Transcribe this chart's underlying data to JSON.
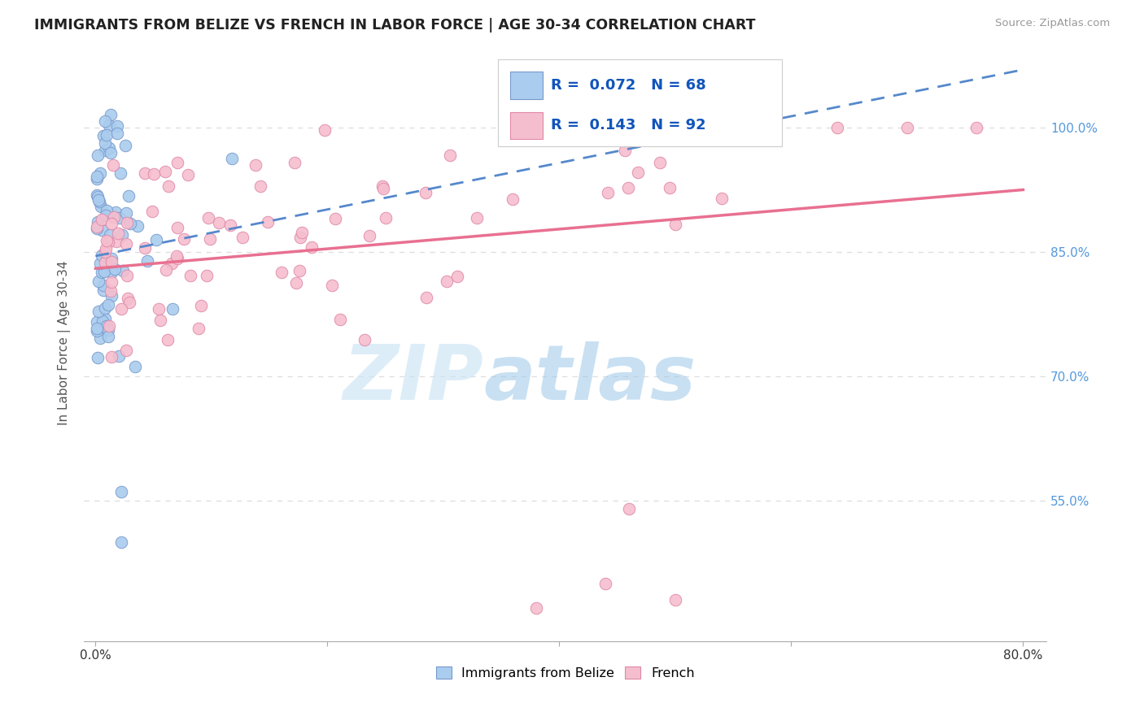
{
  "title": "IMMIGRANTS FROM BELIZE VS FRENCH IN LABOR FORCE | AGE 30-34 CORRELATION CHART",
  "source": "Source: ZipAtlas.com",
  "ylabel": "In Labor Force | Age 30-34",
  "xlim": [
    -0.01,
    0.82
  ],
  "ylim": [
    0.38,
    1.1
  ],
  "xtick_values": [
    0.0,
    0.2,
    0.4,
    0.6,
    0.8
  ],
  "xtick_labels": [
    "0.0%",
    "",
    "",
    "",
    "80.0%"
  ],
  "ytick_values": [
    0.55,
    0.7,
    0.85,
    1.0
  ],
  "ytick_labels": [
    "55.0%",
    "70.0%",
    "85.0%",
    "100.0%"
  ],
  "legend_labels": [
    "Immigrants from Belize",
    "French"
  ],
  "R_belize": 0.072,
  "N_belize": 68,
  "R_french": 0.143,
  "N_french": 92,
  "belize_color": "#aaccee",
  "french_color": "#f5bece",
  "belize_edge": "#7799cc",
  "french_edge": "#e088a8",
  "trend_belize_color": "#5588cc",
  "trend_french_color": "#e87090",
  "watermark_zip": "ZIP",
  "watermark_atlas": "atlas",
  "background_color": "#ffffff",
  "grid_color": "#dddddd",
  "tick_color": "#aaaaaa",
  "right_label_color": "#5599dd",
  "bottom_label_color": "#333333"
}
